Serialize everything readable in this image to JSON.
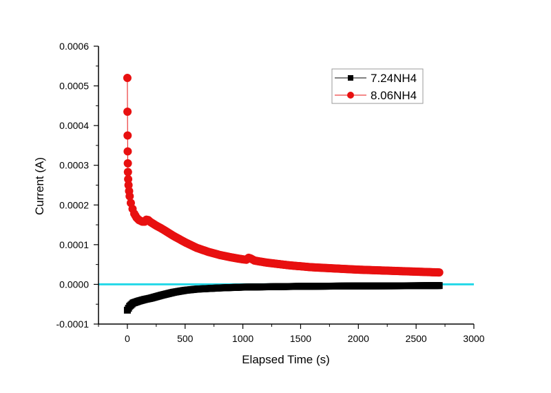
{
  "chart_data": {
    "type": "scatter",
    "xlabel": "Elapsed Time (s)",
    "ylabel": "Current (A)",
    "xlim": [
      -250,
      3000
    ],
    "ylim": [
      -0.0001,
      0.0006
    ],
    "xticks": [
      0,
      500,
      1000,
      1500,
      2000,
      2500,
      3000
    ],
    "xtick_labels": [
      "0",
      "500",
      "1000",
      "1500",
      "2000",
      "2500",
      "3000"
    ],
    "yticks": [
      -0.0001,
      0,
      0.0001,
      0.0002,
      0.0003,
      0.0004,
      0.0005,
      0.0006
    ],
    "ytick_labels": [
      "-0.0001",
      "0.0000",
      "0.0001",
      "0.0002",
      "0.0003",
      "0.0004",
      "0.0005",
      "0.0006"
    ],
    "grid": false,
    "legend_position": "top-right",
    "reference_line": {
      "y": 0,
      "color": "#22d8e8"
    },
    "series": [
      {
        "name": "7.24NH4",
        "color": "#000000",
        "marker": "square",
        "x": [
          0,
          10,
          20,
          50,
          100,
          150,
          200,
          300,
          400,
          500,
          600,
          800,
          1000,
          1500,
          2000,
          2500,
          2700
        ],
        "y": [
          -6.5e-05,
          -6e-05,
          -5.5e-05,
          -4.7e-05,
          -4.2e-05,
          -3.8e-05,
          -3.5e-05,
          -2.7e-05,
          -2e-05,
          -1.5e-05,
          -1.2e-05,
          -9e-06,
          -7e-06,
          -5e-06,
          -4e-06,
          -3.5e-06,
          -3e-06
        ]
      },
      {
        "name": "8.06NH4",
        "color": "#e81010",
        "marker": "circle",
        "x": [
          0,
          1,
          2,
          3,
          4,
          5,
          7,
          10,
          15,
          20,
          30,
          45,
          60,
          80,
          100,
          130,
          150,
          165,
          180,
          200,
          250,
          300,
          400,
          500,
          600,
          700,
          800,
          900,
          1000,
          1030,
          1050,
          1070,
          1100,
          1200,
          1400,
          1600,
          1800,
          2000,
          2200,
          2400,
          2600,
          2700
        ],
        "y": [
          0.00052,
          0.000435,
          0.000375,
          0.000335,
          0.000305,
          0.000283,
          0.000265,
          0.00025,
          0.000235,
          0.000222,
          0.000205,
          0.00019,
          0.000178,
          0.000168,
          0.000162,
          0.000158,
          0.000158,
          0.000163,
          0.000162,
          0.000157,
          0.000148,
          0.00014,
          0.000122,
          0.000106,
          9.2e-05,
          8.2e-05,
          7.4e-05,
          6.8e-05,
          6.3e-05,
          6.2e-05,
          6.7e-05,
          6.5e-05,
          6e-05,
          5.5e-05,
          4.8e-05,
          4.3e-05,
          4e-05,
          3.7e-05,
          3.5e-05,
          3.3e-05,
          3.1e-05,
          3e-05
        ]
      }
    ]
  }
}
